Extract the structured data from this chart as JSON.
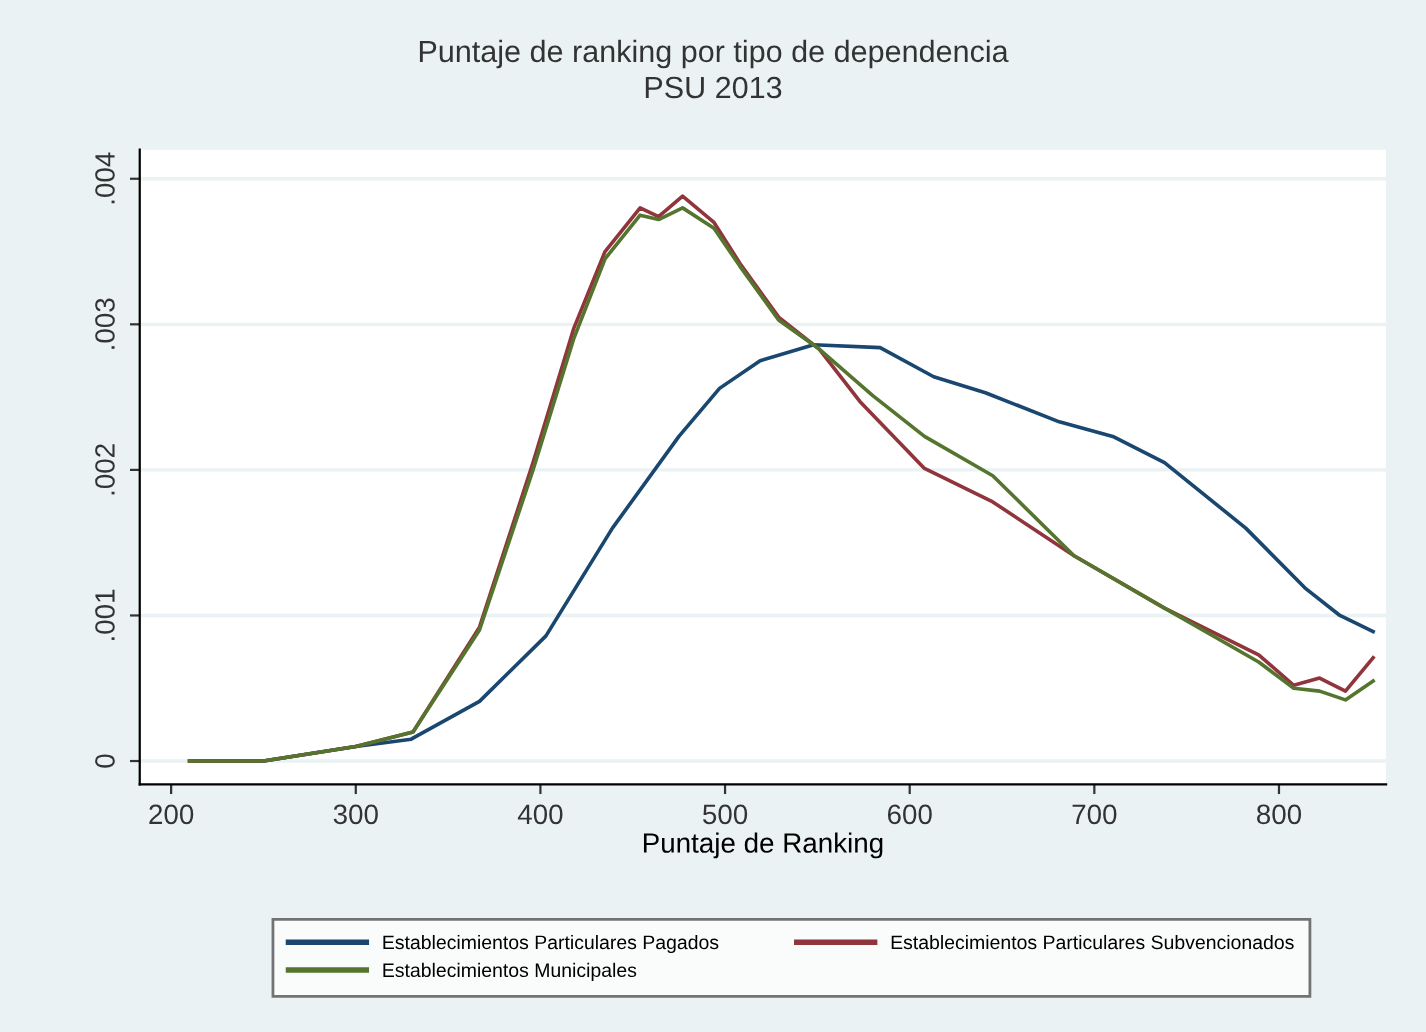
{
  "chart_data": {
    "type": "line",
    "title": "Puntaje de ranking por tipo de dependencia",
    "subtitle": "PSU 2013",
    "xlabel": "Puntaje de Ranking",
    "xlim": [
      183,
      858
    ],
    "ylim": [
      -0.00016,
      0.0042
    ],
    "xticks": [
      200,
      300,
      400,
      500,
      600,
      700,
      800
    ],
    "yticks": [
      0,
      {
        "value": 0.001,
        "label": ".001"
      },
      {
        "value": 0.002,
        "label": ".002"
      },
      {
        "value": 0.003,
        "label": ".003"
      },
      {
        "value": 0.004,
        "label": ".004"
      }
    ],
    "grid": "y",
    "legend": "bottom",
    "marker": "none",
    "line_style": "solid",
    "series": [
      {
        "name": "Establecimientos Particulares Pagados",
        "color": "#1a476f",
        "x": [
          210,
          250,
          300,
          330,
          367,
          403,
          439,
          475,
          497,
          519,
          548,
          584,
          613,
          641,
          681,
          710,
          738,
          782,
          814,
          833,
          851
        ],
        "values": [
          0,
          0,
          0.0001,
          0.00015,
          0.00041,
          0.00086,
          0.0016,
          0.00223,
          0.00256,
          0.00275,
          0.00286,
          0.00284,
          0.00264,
          0.00253,
          0.00233,
          0.00223,
          0.00205,
          0.0016,
          0.00119,
          0.001,
          0.00089
        ]
      },
      {
        "name": "Establecimientos Particulares Subvencionados",
        "color": "#90353b",
        "x": [
          210,
          250,
          300,
          331,
          367,
          396,
          418,
          435,
          454,
          464,
          477,
          494,
          508,
          529,
          551,
          573,
          608,
          645,
          689,
          738,
          789,
          808,
          822,
          836,
          851
        ],
        "values": [
          0,
          0,
          0.0001,
          0.0002,
          0.00092,
          0.00205,
          0.00297,
          0.0035,
          0.0038,
          0.00374,
          0.00388,
          0.0037,
          0.00342,
          0.00305,
          0.00283,
          0.00247,
          0.00201,
          0.00178,
          0.00141,
          0.00105,
          0.00073,
          0.00052,
          0.00057,
          0.00048,
          0.00071
        ]
      },
      {
        "name": "Establecimientos Municipales",
        "color": "#55752f",
        "x": [
          210,
          250,
          300,
          331,
          367,
          396,
          418,
          435,
          454,
          464,
          477,
          494,
          508,
          529,
          551,
          580,
          608,
          645,
          689,
          738,
          789,
          808,
          822,
          836,
          851
        ],
        "values": [
          0,
          0,
          0.0001,
          0.0002,
          0.0009,
          0.002,
          0.0029,
          0.00345,
          0.00375,
          0.00372,
          0.0038,
          0.00366,
          0.0034,
          0.00303,
          0.00283,
          0.00251,
          0.00223,
          0.00196,
          0.00141,
          0.00105,
          0.00068,
          0.0005,
          0.00048,
          0.00042,
          0.00055
        ]
      }
    ]
  }
}
